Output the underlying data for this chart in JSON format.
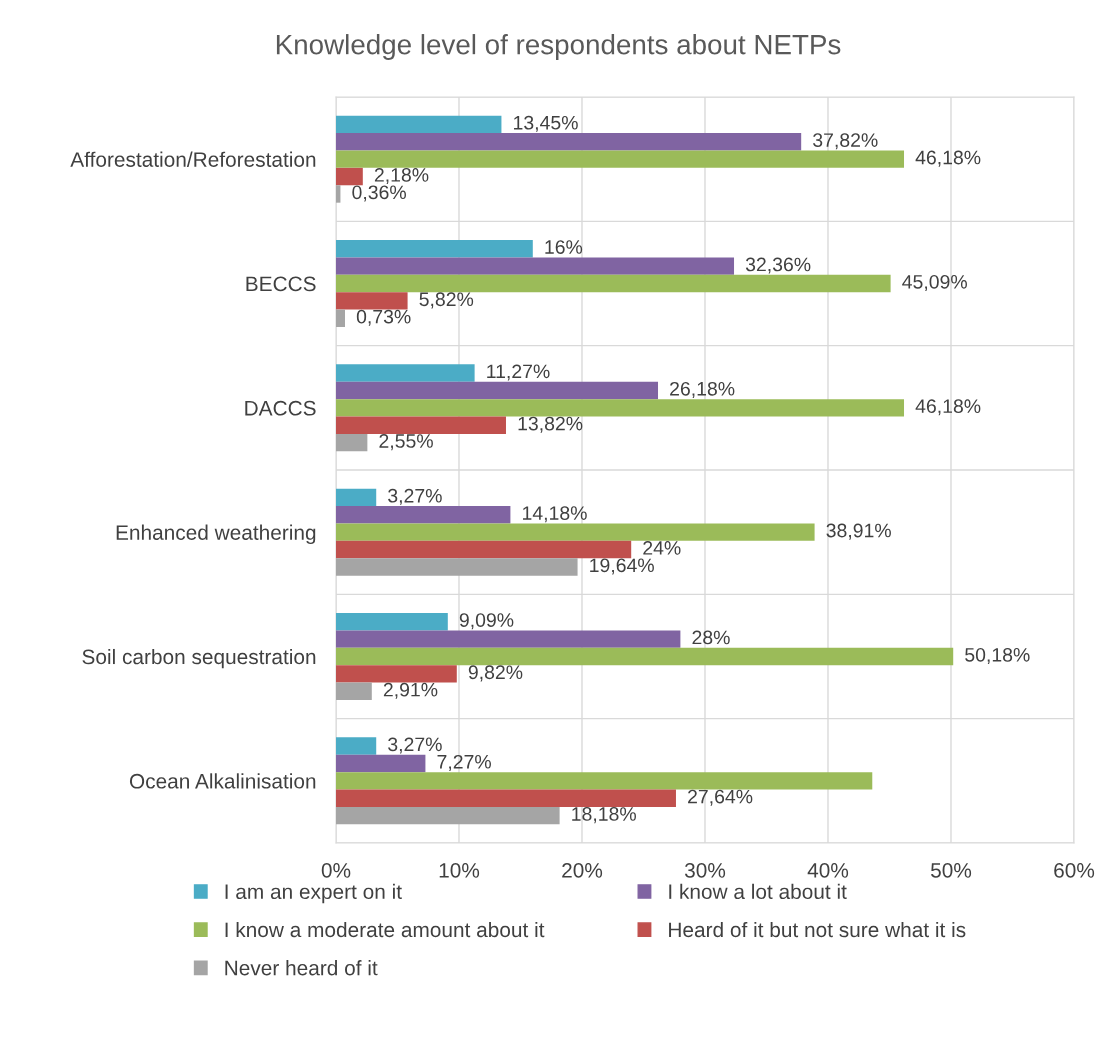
{
  "chart_data": {
    "type": "bar",
    "orientation": "horizontal",
    "title": "Knowledge level of respondents about NETPs",
    "categories": [
      "Afforestation/Reforestation",
      "BECCS",
      "DACCS",
      "Enhanced weathering",
      "Soil carbon sequestration",
      "Ocean Alkalinisation"
    ],
    "series": [
      {
        "name": "I am an expert on it",
        "color": "#4bacc6",
        "values": [
          13.45,
          16,
          11.27,
          3.27,
          9.09,
          3.27
        ],
        "value_labels": [
          "13,45%",
          "16%",
          "11,27%",
          "3,27%",
          "9,09%",
          "3,27%"
        ]
      },
      {
        "name": "I know a lot about it",
        "color": "#8064a2",
        "values": [
          37.82,
          32.36,
          26.18,
          14.18,
          28,
          7.27
        ],
        "value_labels": [
          "37,82%",
          "32,36%",
          "26,18%",
          "14,18%",
          "28%",
          "7,27%"
        ]
      },
      {
        "name": "I know a moderate amount about it",
        "color": "#9bbb59",
        "values": [
          46.18,
          45.09,
          46.18,
          38.91,
          50.18,
          43.6
        ],
        "value_labels": [
          "46,18%",
          "45,09%",
          "46,18%",
          "38,91%",
          "50,18%",
          null
        ]
      },
      {
        "name": "Heard of it but not sure what it is",
        "color": "#c0504d",
        "values": [
          2.18,
          5.82,
          13.82,
          24,
          9.82,
          27.64
        ],
        "value_labels": [
          "2,18%",
          "5,82%",
          "13,82%",
          "24%",
          "9,82%",
          "27,64%"
        ]
      },
      {
        "name": "Never heard of it",
        "color": "#a5a5a5",
        "values": [
          0.36,
          0.73,
          2.55,
          19.64,
          2.91,
          18.18
        ],
        "value_labels": [
          "0,36%",
          "0,73%",
          "2,55%",
          "19,64%",
          "2,91%",
          "18,18%"
        ]
      }
    ],
    "xlim": [
      0,
      60
    ],
    "xticks": [
      {
        "value": 0,
        "label": "0%"
      },
      {
        "value": 10,
        "label": "10%"
      },
      {
        "value": 20,
        "label": "20%"
      },
      {
        "value": 30,
        "label": "30%"
      },
      {
        "value": 40,
        "label": "40%"
      },
      {
        "value": 50,
        "label": "50%"
      },
      {
        "value": 60,
        "label": "60%"
      }
    ],
    "grid": "x",
    "legend": "bottom"
  }
}
